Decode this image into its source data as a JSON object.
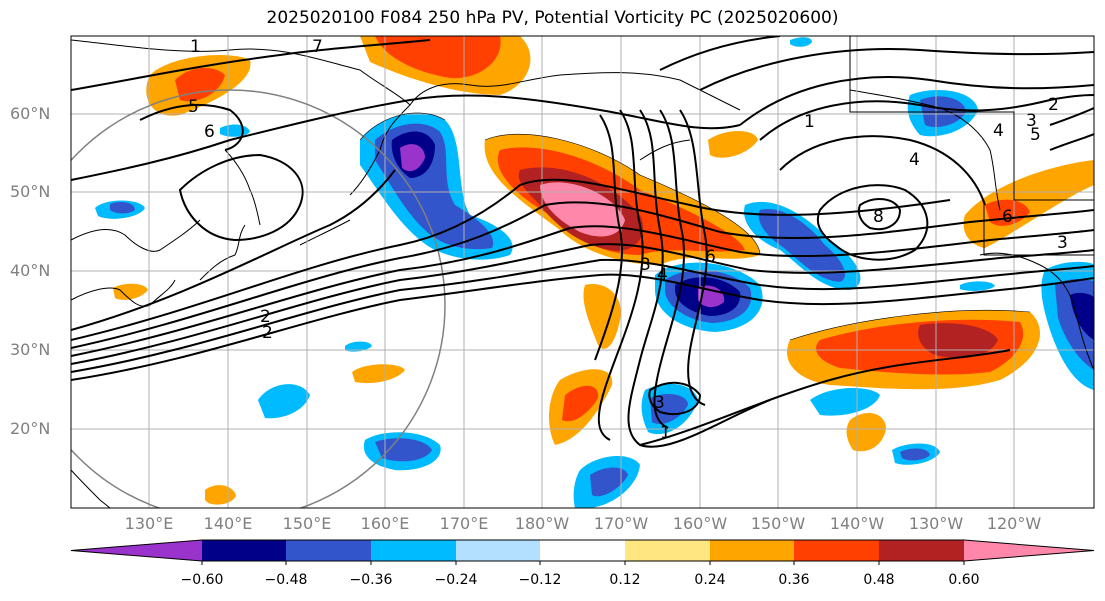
{
  "title": "2025020100 F084 250 hPa PV, Potential Vorticity PC (2025020600)",
  "lat_labels": [
    "60°N",
    "50°N",
    "40°N",
    "30°N",
    "20°N"
  ],
  "lon_labels": [
    "130°E",
    "140°E",
    "150°E",
    "160°E",
    "170°E",
    "180°W",
    "170°W",
    "160°W",
    "150°W",
    "140°W",
    "130°W",
    "120°W"
  ],
  "colorbar": {
    "tick_labels": [
      "−0.60",
      "−0.48",
      "−0.36",
      "−0.24",
      "−0.12",
      "0.12",
      "0.24",
      "0.36",
      "0.48",
      "0.60"
    ],
    "colors": [
      "#9933cc",
      "#000088",
      "#3355cc",
      "#00bbff",
      "#b3e0ff",
      "#ffffff",
      "#ffe680",
      "#ffa500",
      "#ff4000",
      "#b22222",
      "#ff88aa"
    ]
  },
  "contour_labels": [
    "1",
    "7",
    "5",
    "6",
    "2",
    "2",
    "3",
    "4",
    "6",
    "1",
    "2",
    "3",
    "4",
    "5",
    "8",
    "6",
    "3",
    "4",
    "3",
    "1"
  ]
}
